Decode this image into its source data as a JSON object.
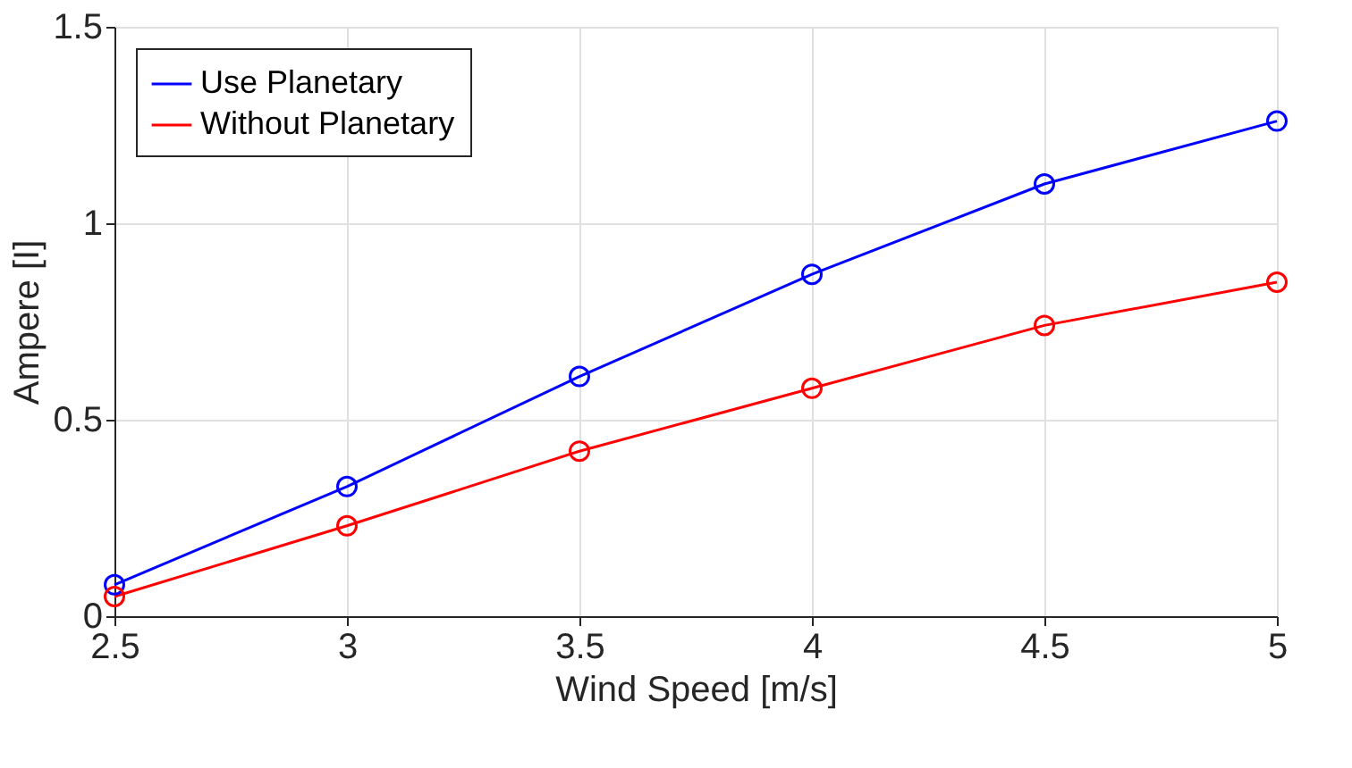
{
  "chart_data": {
    "type": "line",
    "xlabel": "Wind Speed [m/s]",
    "ylabel": "Ampere [I]",
    "x": [
      2.5,
      3,
      3.5,
      4,
      4.5,
      5
    ],
    "series": [
      {
        "name": "Use Planetary",
        "color": "#0000ff",
        "values": [
          0.08,
          0.33,
          0.61,
          0.87,
          1.1,
          1.26
        ]
      },
      {
        "name": "Without Planetary",
        "color": "#ff0000",
        "values": [
          0.05,
          0.23,
          0.42,
          0.58,
          0.74,
          0.85
        ]
      }
    ],
    "xlim": [
      2.5,
      5
    ],
    "xticks": [
      2.5,
      3,
      3.5,
      4,
      4.5,
      5
    ],
    "ylim": [
      0,
      1.5
    ],
    "yticks": [
      0,
      0.5,
      1,
      1.5
    ],
    "grid": true,
    "legend": "top left",
    "marker": "circle",
    "line_style": "solid"
  }
}
